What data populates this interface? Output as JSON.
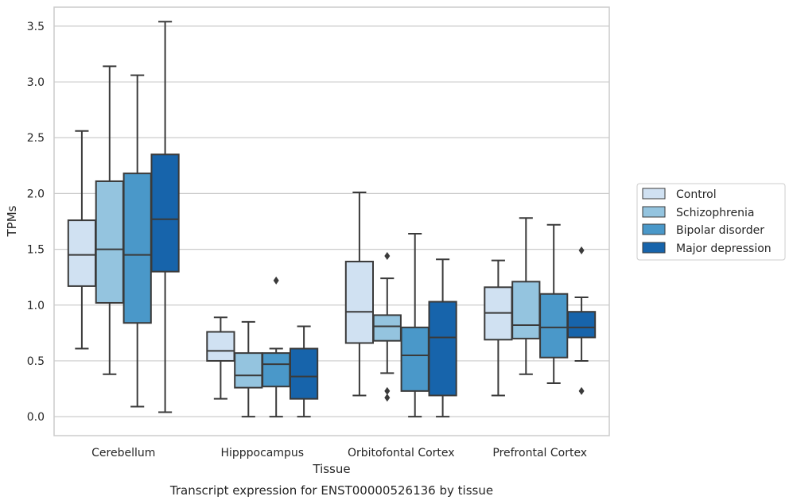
{
  "chart_data": {
    "type": "boxplot",
    "xlabel": "Tissue",
    "ylabel": "TPMs",
    "caption": "Transcript expression for ENST00000526136 by tissue",
    "ylim": [
      -0.17,
      3.67
    ],
    "yticks": [
      0.0,
      0.5,
      1.0,
      1.5,
      2.0,
      2.5,
      3.0,
      3.5
    ],
    "ytick_labels": [
      "0.0",
      "0.5",
      "1.0",
      "1.5",
      "2.0",
      "2.5",
      "3.0",
      "3.5"
    ],
    "grid": "horizontal",
    "legend_position": "outside-right",
    "categories": [
      "Cerebellum",
      "Hipppocampus",
      "Orbitofontal Cortex",
      "Prefrontal Cortex"
    ],
    "series": [
      {
        "name": "Control",
        "color": "#d0e1f2",
        "boxes": [
          {
            "whisker_low": 0.61,
            "q1": 1.17,
            "median": 1.45,
            "q3": 1.76,
            "whisker_high": 2.56,
            "outliers": []
          },
          {
            "whisker_low": 0.16,
            "q1": 0.5,
            "median": 0.59,
            "q3": 0.76,
            "whisker_high": 0.89,
            "outliers": []
          },
          {
            "whisker_low": 0.19,
            "q1": 0.66,
            "median": 0.94,
            "q3": 1.39,
            "whisker_high": 2.01,
            "outliers": []
          },
          {
            "whisker_low": 0.19,
            "q1": 0.69,
            "median": 0.93,
            "q3": 1.16,
            "whisker_high": 1.4,
            "outliers": []
          }
        ]
      },
      {
        "name": "Schizophrenia",
        "color": "#94c4df",
        "boxes": [
          {
            "whisker_low": 0.38,
            "q1": 1.02,
            "median": 1.5,
            "q3": 2.11,
            "whisker_high": 3.14,
            "outliers": []
          },
          {
            "whisker_low": 0.0,
            "q1": 0.26,
            "median": 0.37,
            "q3": 0.57,
            "whisker_high": 0.85,
            "outliers": []
          },
          {
            "whisker_low": 0.39,
            "q1": 0.68,
            "median": 0.81,
            "q3": 0.91,
            "whisker_high": 1.24,
            "outliers": [
              1.44,
              0.23,
              0.17
            ]
          },
          {
            "whisker_low": 0.38,
            "q1": 0.7,
            "median": 0.82,
            "q3": 1.21,
            "whisker_high": 1.78,
            "outliers": []
          }
        ]
      },
      {
        "name": "Bipolar disorder",
        "color": "#4a98c9",
        "boxes": [
          {
            "whisker_low": 0.09,
            "q1": 0.84,
            "median": 1.45,
            "q3": 2.18,
            "whisker_high": 3.06,
            "outliers": []
          },
          {
            "whisker_low": 0.0,
            "q1": 0.27,
            "median": 0.47,
            "q3": 0.57,
            "whisker_high": 0.61,
            "outliers": [
              1.22
            ]
          },
          {
            "whisker_low": 0.0,
            "q1": 0.23,
            "median": 0.55,
            "q3": 0.8,
            "whisker_high": 1.64,
            "outliers": []
          },
          {
            "whisker_low": 0.3,
            "q1": 0.53,
            "median": 0.8,
            "q3": 1.1,
            "whisker_high": 1.72,
            "outliers": []
          }
        ]
      },
      {
        "name": "Major depression",
        "color": "#1764ab",
        "boxes": [
          {
            "whisker_low": 0.04,
            "q1": 1.3,
            "median": 1.77,
            "q3": 2.35,
            "whisker_high": 3.54,
            "outliers": []
          },
          {
            "whisker_low": 0.0,
            "q1": 0.16,
            "median": 0.36,
            "q3": 0.61,
            "whisker_high": 0.81,
            "outliers": []
          },
          {
            "whisker_low": 0.0,
            "q1": 0.19,
            "median": 0.71,
            "q3": 1.03,
            "whisker_high": 1.41,
            "outliers": []
          },
          {
            "whisker_low": 0.5,
            "q1": 0.71,
            "median": 0.8,
            "q3": 0.94,
            "whisker_high": 1.07,
            "outliers": [
              1.49,
              0.23
            ]
          }
        ]
      }
    ]
  }
}
